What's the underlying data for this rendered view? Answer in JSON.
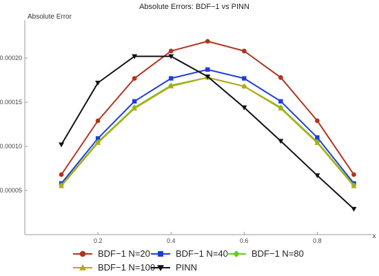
{
  "chart_data": {
    "type": "line",
    "title": "Absolute Errors: BDF−1 vs PINN",
    "xlabel": "x",
    "ylabel": "Absolute Error",
    "xlim": [
      0.0,
      0.95
    ],
    "ylim": [
      0.0,
      0.00024
    ],
    "x_ticks": [
      0.2,
      0.4,
      0.6,
      0.8
    ],
    "x_tick_labels": [
      "0.2",
      "0.4",
      "0.6",
      "0.8"
    ],
    "y_ticks": [
      5e-05,
      0.0001,
      0.00015,
      0.0002
    ],
    "y_tick_labels": [
      "0.00005",
      "0.00010",
      "0.00015",
      "0.00020"
    ],
    "legend_position": "bottom",
    "x": [
      0.1,
      0.2,
      0.3,
      0.4,
      0.5,
      0.6,
      0.7,
      0.8,
      0.9
    ],
    "series": [
      {
        "name": "BDF−1 N=20",
        "color": "#b0341e",
        "marker": "circle",
        "values": [
          6.8e-05,
          0.000129,
          0.000177,
          0.000208,
          0.000219,
          0.000208,
          0.000178,
          0.000129,
          6.8e-05
        ]
      },
      {
        "name": "BDF−1 N=40",
        "color": "#1e3cdc",
        "marker": "square",
        "values": [
          5.8e-05,
          0.000109,
          0.000151,
          0.000177,
          0.000187,
          0.000177,
          0.000151,
          0.00011,
          5.8e-05
        ]
      },
      {
        "name": "BDF−1 N=80",
        "color": "#66cc22",
        "marker": "diamond",
        "values": [
          5.6e-05,
          0.000105,
          0.000144,
          0.000169,
          0.000178,
          0.000168,
          0.000144,
          0.000105,
          5.6e-05
        ]
      },
      {
        "name": "BDF−1 N=100",
        "color": "#b8a818",
        "marker": "triangle-up",
        "values": [
          5.5e-05,
          0.000104,
          0.000143,
          0.000168,
          0.000178,
          0.000168,
          0.000143,
          0.000104,
          5.5e-05
        ]
      },
      {
        "name": "PINN",
        "color": "#111111",
        "marker": "triangle-down",
        "values": [
          0.000102,
          0.000172,
          0.000202,
          0.000202,
          0.000179,
          0.000144,
          0.000106,
          6.7e-05,
          2.9e-05
        ]
      }
    ]
  }
}
